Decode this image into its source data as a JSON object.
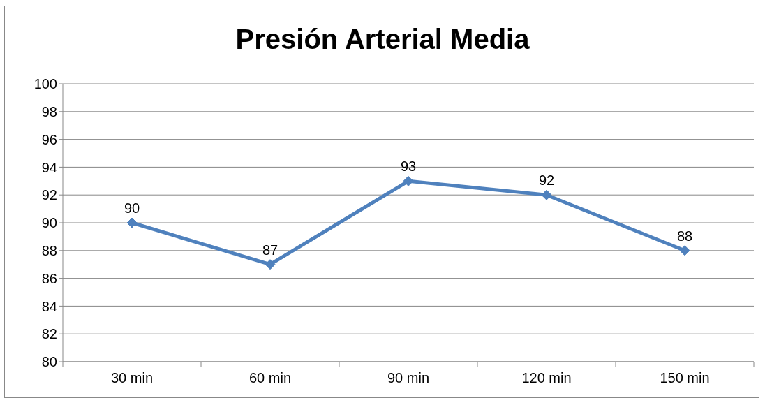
{
  "chart_data": {
    "type": "line",
    "title": "Presión Arterial Media",
    "categories": [
      "30 min",
      "60 min",
      "90 min",
      "120 min",
      "150 min"
    ],
    "series": [
      {
        "color": "#4f81bd",
        "values": [
          90,
          87,
          93,
          92,
          88
        ]
      }
    ],
    "ylim": [
      80,
      100
    ],
    "yticks": [
      80,
      82,
      84,
      86,
      88,
      90,
      92,
      94,
      96,
      98,
      100
    ],
    "grid": "y",
    "legend": false,
    "marker": "diamond",
    "data_labels": true
  }
}
